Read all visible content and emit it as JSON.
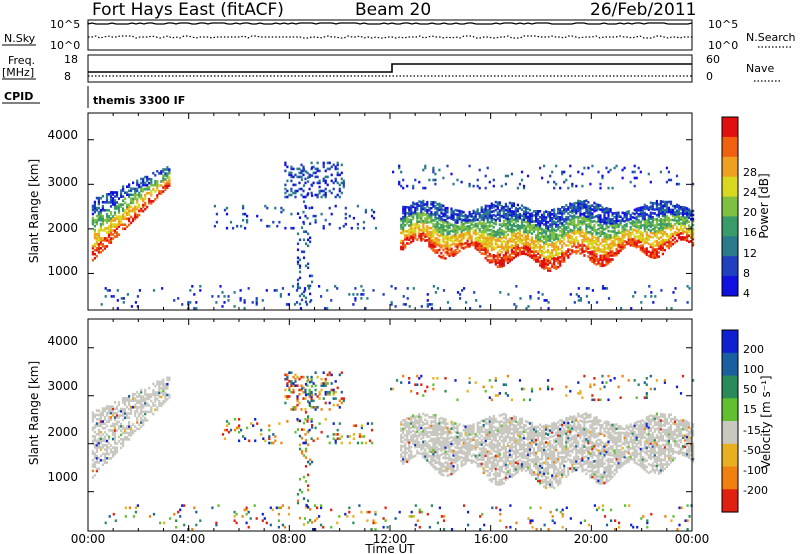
{
  "header": {
    "station": "Fort Hays East (fitACF)",
    "beam": "Beam 20",
    "date": "26/Feb/2011"
  },
  "strip": {
    "nsky_label": "N.Sky",
    "nsky_ticks": [
      "10^5",
      "10^0"
    ],
    "nsearch_label": "N.Search",
    "nsearch_ticks": [
      "10^5",
      "10^0"
    ],
    "freq_label": "Freq.",
    "freq_unit": "[MHz]",
    "freq_ticks": [
      "18",
      "8"
    ],
    "nave_label": "Nave",
    "nave_ticks": [
      "60",
      "0"
    ],
    "cpid_label": "CPID",
    "cpid_value": "themis 3300 IF"
  },
  "chart_data": [
    {
      "type": "heatmap",
      "panel": "power",
      "ylabel": "Slant Range [km]",
      "ylim": [
        180,
        4600
      ],
      "yticks": [
        "4000",
        "3000",
        "2000",
        "1000"
      ],
      "colorbar_label": "Power [dB]",
      "colorbar_ticks": [
        "28",
        "24",
        "20",
        "16",
        "12",
        "8",
        "4"
      ],
      "colors": [
        "#1010e0",
        "#2040c0",
        "#2a7a8a",
        "#3a9a6a",
        "#80c040",
        "#d8d820",
        "#f0a020",
        "#f06010",
        "#e01010"
      ]
    },
    {
      "type": "heatmap",
      "panel": "velocity",
      "ylabel": "Slant Range [km]",
      "ylim": [
        180,
        4600
      ],
      "yticks": [
        "4000",
        "3000",
        "2000",
        "1000"
      ],
      "colorbar_label": "Velocity [m s⁻¹]",
      "colorbar_ticks": [
        "200",
        "100",
        "50",
        "15",
        "-15",
        "-50",
        "-100",
        "-200"
      ],
      "colors": [
        "#1020d0",
        "#1a60a0",
        "#2a8a5a",
        "#60c030",
        "#c8c8c0",
        "#e8b020",
        "#f08010",
        "#e02010"
      ]
    }
  ],
  "x_axis": {
    "label": "Time UT",
    "ticks": [
      "00:00",
      "04:00",
      "08:00",
      "12:00",
      "16:00",
      "20:00",
      "00:00"
    ]
  }
}
